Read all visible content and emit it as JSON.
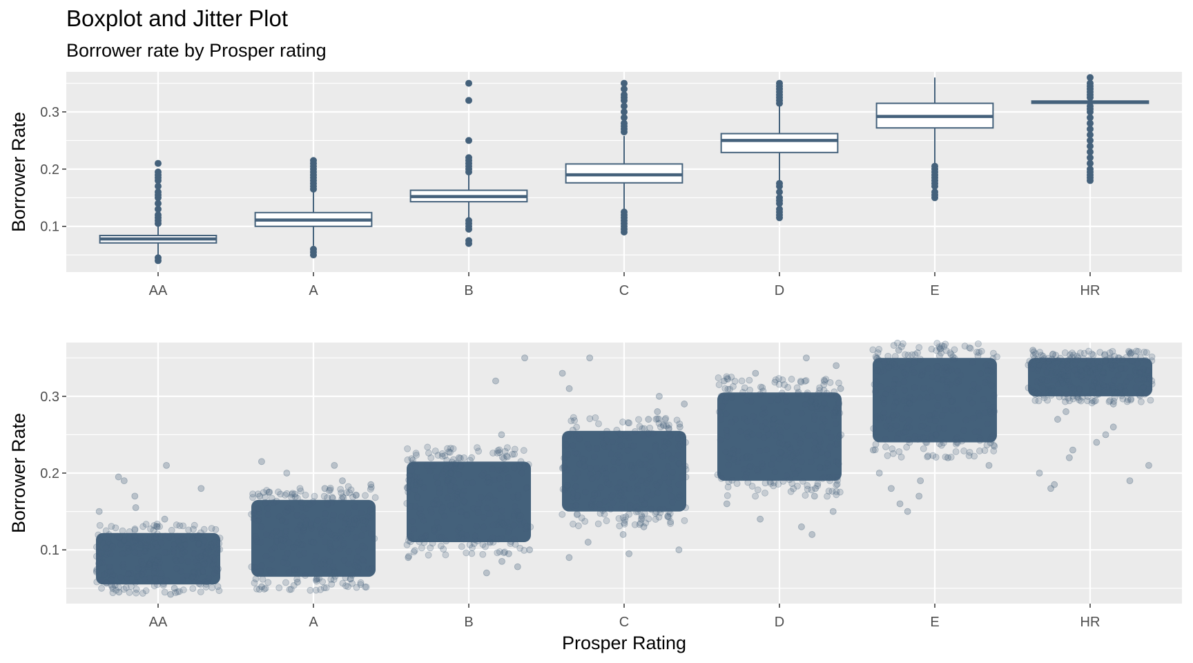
{
  "title": "Boxplot and Jitter Plot",
  "subtitle": "Borrower rate by Prosper rating",
  "colors": {
    "mark": "#44617b",
    "panel": "#ebebeb",
    "grid": "#ffffff",
    "box_fill": "#ffffff"
  },
  "chart_data": [
    {
      "type": "boxplot",
      "ylabel": "Borrower Rate",
      "xlabel": "",
      "ylim": [
        0.02,
        0.37
      ],
      "yticks": [
        0.1,
        0.2,
        0.3
      ],
      "ytick_labels": [
        "0.1",
        "0.2",
        "0.3"
      ],
      "grid": true,
      "categories": [
        "AA",
        "A",
        "B",
        "C",
        "D",
        "E",
        "HR"
      ],
      "boxes": [
        {
          "category": "AA",
          "min": 0.047,
          "q1": 0.071,
          "median": 0.078,
          "q3": 0.084,
          "max": 0.1,
          "outliers": [
            0.04,
            0.045,
            0.105,
            0.11,
            0.115,
            0.12,
            0.13,
            0.14,
            0.15,
            0.155,
            0.16,
            0.17,
            0.18,
            0.185,
            0.19,
            0.195,
            0.21
          ]
        },
        {
          "category": "A",
          "min": 0.066,
          "q1": 0.1,
          "median": 0.111,
          "q3": 0.124,
          "max": 0.16,
          "outliers": [
            0.05,
            0.055,
            0.06,
            0.165,
            0.17,
            0.175,
            0.18,
            0.185,
            0.19,
            0.195,
            0.2,
            0.205,
            0.21,
            0.215
          ]
        },
        {
          "category": "B",
          "min": 0.115,
          "q1": 0.143,
          "median": 0.152,
          "q3": 0.163,
          "max": 0.19,
          "outliers": [
            0.07,
            0.075,
            0.095,
            0.1,
            0.105,
            0.11,
            0.195,
            0.2,
            0.205,
            0.21,
            0.215,
            0.22,
            0.25,
            0.32,
            0.35
          ]
        },
        {
          "category": "C",
          "min": 0.13,
          "q1": 0.176,
          "median": 0.19,
          "q3": 0.209,
          "max": 0.258,
          "outliers": [
            0.09,
            0.095,
            0.1,
            0.105,
            0.11,
            0.115,
            0.12,
            0.125,
            0.265,
            0.27,
            0.275,
            0.28,
            0.29,
            0.3,
            0.31,
            0.32,
            0.325,
            0.33,
            0.34,
            0.35
          ]
        },
        {
          "category": "D",
          "min": 0.18,
          "q1": 0.229,
          "median": 0.25,
          "q3": 0.262,
          "max": 0.31,
          "outliers": [
            0.115,
            0.12,
            0.125,
            0.13,
            0.14,
            0.145,
            0.15,
            0.16,
            0.17,
            0.175,
            0.315,
            0.32,
            0.325,
            0.33,
            0.335,
            0.34,
            0.345,
            0.35
          ]
        },
        {
          "category": "E",
          "min": 0.21,
          "q1": 0.272,
          "median": 0.292,
          "q3": 0.315,
          "max": 0.36,
          "outliers": [
            0.15,
            0.155,
            0.16,
            0.17,
            0.175,
            0.18,
            0.185,
            0.19,
            0.195,
            0.2,
            0.205
          ]
        },
        {
          "category": "HR",
          "min": 0.315,
          "q1": 0.315,
          "median": 0.317,
          "q3": 0.319,
          "max": 0.319,
          "outliers": [
            0.18,
            0.185,
            0.19,
            0.195,
            0.2,
            0.21,
            0.22,
            0.23,
            0.24,
            0.25,
            0.26,
            0.27,
            0.28,
            0.29,
            0.3,
            0.305,
            0.31,
            0.325,
            0.33,
            0.335,
            0.34,
            0.345,
            0.35,
            0.36
          ]
        }
      ]
    },
    {
      "type": "scatter",
      "ylabel": "Borrower Rate",
      "xlabel": "Prosper Rating",
      "ylim": [
        0.03,
        0.37
      ],
      "yticks": [
        0.1,
        0.2,
        0.3
      ],
      "ytick_labels": [
        "0.1",
        "0.2",
        "0.3"
      ],
      "grid": true,
      "categories": [
        "AA",
        "A",
        "B",
        "C",
        "D",
        "E",
        "HR"
      ],
      "jitter_width": 0.4,
      "point_alpha": 0.22,
      "groups": [
        {
          "category": "AA",
          "core": [
            0.055,
            0.122
          ],
          "outliers": [
            0.042,
            0.045,
            0.05,
            0.13,
            0.14,
            0.15,
            0.155,
            0.17,
            0.18,
            0.19,
            0.195,
            0.21
          ]
        },
        {
          "category": "A",
          "core": [
            0.065,
            0.165
          ],
          "outliers": [
            0.052,
            0.058,
            0.17,
            0.175,
            0.18,
            0.185,
            0.19,
            0.2,
            0.21,
            0.215
          ]
        },
        {
          "category": "B",
          "core": [
            0.11,
            0.215
          ],
          "outliers": [
            0.07,
            0.078,
            0.085,
            0.09,
            0.095,
            0.1,
            0.22,
            0.25,
            0.32,
            0.35
          ]
        },
        {
          "category": "C",
          "core": [
            0.15,
            0.255
          ],
          "outliers": [
            0.09,
            0.095,
            0.1,
            0.11,
            0.12,
            0.13,
            0.14,
            0.26,
            0.27,
            0.28,
            0.29,
            0.3,
            0.31,
            0.33,
            0.35
          ]
        },
        {
          "category": "D",
          "core": [
            0.19,
            0.305
          ],
          "outliers": [
            0.12,
            0.13,
            0.14,
            0.15,
            0.16,
            0.17,
            0.18,
            0.31,
            0.32,
            0.33,
            0.34,
            0.35
          ]
        },
        {
          "category": "E",
          "core": [
            0.24,
            0.35
          ],
          "outliers": [
            0.15,
            0.16,
            0.17,
            0.18,
            0.19,
            0.2,
            0.21,
            0.22,
            0.23,
            0.36
          ]
        },
        {
          "category": "HR",
          "core": [
            0.3,
            0.35
          ],
          "outliers": [
            0.18,
            0.185,
            0.19,
            0.2,
            0.21,
            0.22,
            0.23,
            0.24,
            0.25,
            0.26,
            0.27,
            0.28,
            0.29,
            0.36
          ]
        }
      ]
    }
  ]
}
